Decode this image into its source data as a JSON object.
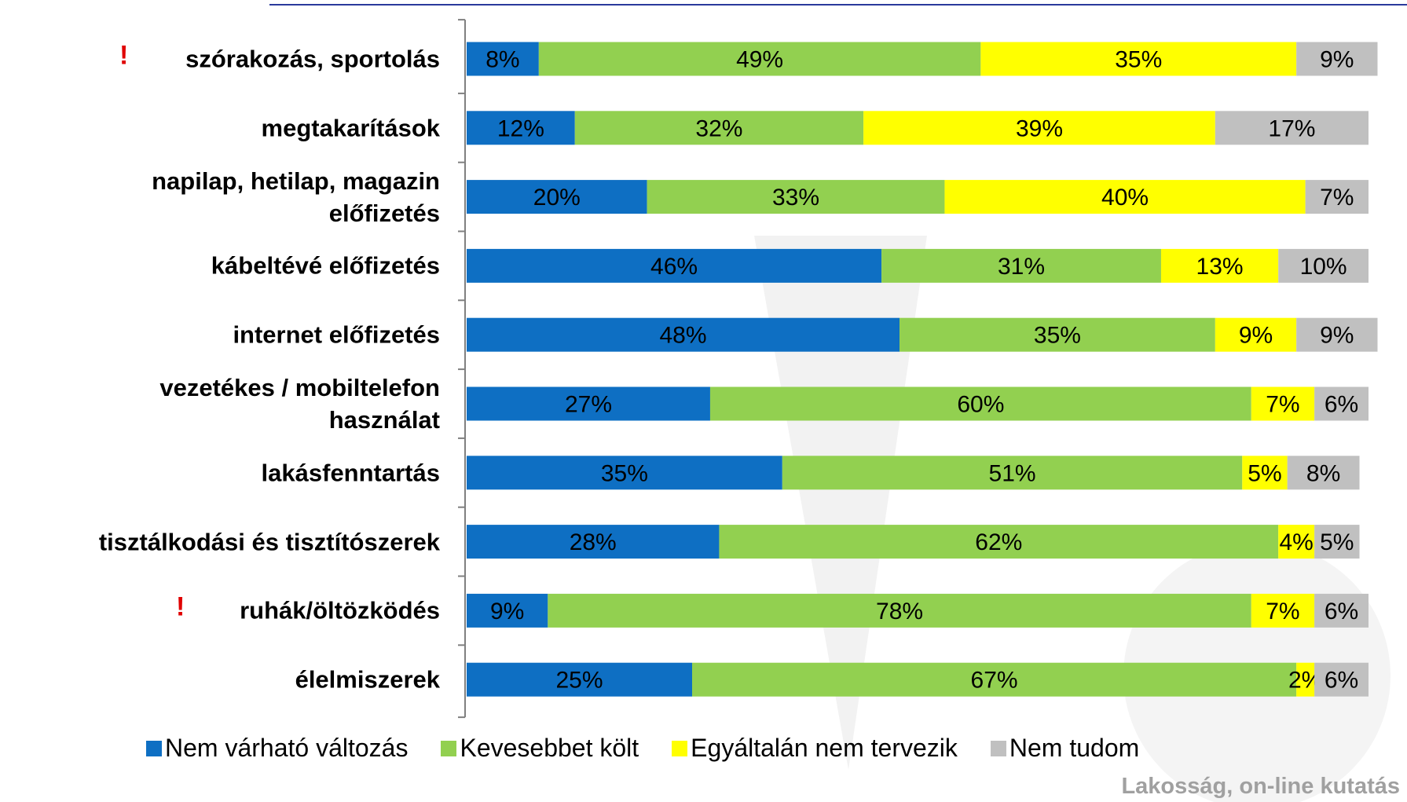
{
  "chart_data": {
    "type": "stacked-bar-horizontal",
    "categories": [
      "szórakozás, sportolás",
      "megtakarítások",
      "napilap, hetilap, magazin\nelőfizetés",
      "kábeltévé előfizetés",
      "internet előfizetés",
      "vezetékes / mobiltelefon\nhasználat",
      "lakásfenntartás",
      "tisztálkodási és tisztítószerek",
      "ruhák/öltözködés",
      "élelmiszerek"
    ],
    "series": [
      {
        "name": "Nem várható változás",
        "color": "#0e6fc3",
        "values": [
          8,
          12,
          20,
          46,
          48,
          27,
          35,
          28,
          9,
          25
        ],
        "value_labels": [
          "8%",
          "12%",
          "20%",
          "46%",
          "48%",
          "27%",
          "35%",
          "28%",
          "9%",
          "25%"
        ]
      },
      {
        "name": "Kevesebbet költ",
        "color": "#92d050",
        "values": [
          49,
          32,
          33,
          31,
          35,
          60,
          51,
          62,
          78,
          67
        ],
        "value_labels": [
          "49%",
          "32%",
          "33%",
          "31%",
          "35%",
          "60%",
          "51%",
          "62%",
          "78%",
          "67%"
        ]
      },
      {
        "name": "Egyáltalán nem tervezik",
        "color": "#ffff00",
        "values": [
          35,
          39,
          40,
          13,
          9,
          7,
          5,
          4,
          7,
          2
        ],
        "value_labels": [
          "35%",
          "39%",
          "40%",
          "13%",
          "9%",
          "7%",
          "5%",
          "4%",
          "7%",
          "2%"
        ]
      },
      {
        "name": "Nem tudom",
        "color": "#c0c0c0",
        "values": [
          9,
          17,
          7,
          10,
          9,
          6,
          8,
          5,
          6,
          6
        ],
        "value_labels": [
          "9%",
          "17%",
          "7%",
          "10%",
          "9%",
          "6%",
          "8%",
          "5%",
          "6%",
          "6%"
        ]
      }
    ],
    "xlim": [
      0,
      100
    ],
    "annotations": [
      {
        "category": 0,
        "text": "!"
      },
      {
        "category": 8,
        "text": "!"
      }
    ],
    "source": "Lakosság, on-line kutatás"
  }
}
